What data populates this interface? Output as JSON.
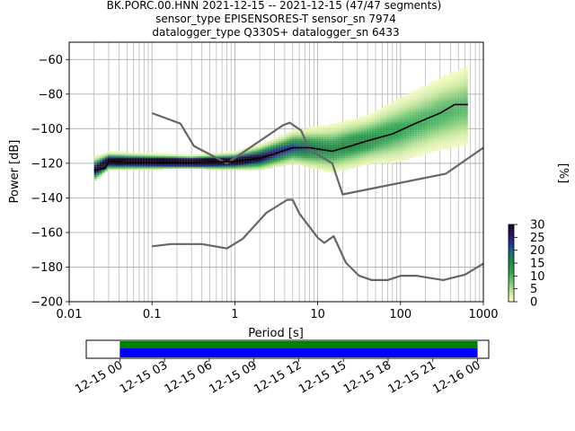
{
  "title_lines": [
    "BK.PORC.00.HNN   2021-12-15 -- 2021-12-15  (47/47 segments)",
    "sensor_type EPISENSORES-T sensor_sn 7974",
    "datalogger_type Q330S+ datalogger_sn 6433"
  ],
  "chart_data": {
    "type": "heatmap",
    "xlabel": "Period [s]",
    "ylabel": "Power [dB]",
    "xscale": "log",
    "xlim": [
      0.01,
      1000
    ],
    "ylim": [
      -200,
      -50
    ],
    "grid": true,
    "x_ticks": [
      {
        "value": 0.01,
        "label": "0.01"
      },
      {
        "value": 0.1,
        "label": "0.1"
      },
      {
        "value": 1,
        "label": "1"
      },
      {
        "value": 10,
        "label": "10"
      },
      {
        "value": 100,
        "label": "100"
      },
      {
        "value": 1000,
        "label": "1000"
      }
    ],
    "y_ticks": [
      {
        "value": -200,
        "label": "−200"
      },
      {
        "value": -180,
        "label": "−180"
      },
      {
        "value": -160,
        "label": "−160"
      },
      {
        "value": -140,
        "label": "−140"
      },
      {
        "value": -120,
        "label": "−120"
      },
      {
        "value": -100,
        "label": "−100"
      },
      {
        "value": -80,
        "label": "−80"
      },
      {
        "value": -60,
        "label": "−60"
      }
    ],
    "colorbar": {
      "label": "[%]",
      "range": [
        0,
        30
      ],
      "colormap": [
        "#ffffcc",
        "#c2e699",
        "#78c679",
        "#31a354",
        "#238b45",
        "#1d6f6f",
        "#253494",
        "#2c1158",
        "#140a28"
      ],
      "ticks": [
        {
          "value": 0,
          "label": "0"
        },
        {
          "value": 5,
          "label": "5"
        },
        {
          "value": 10,
          "label": "10"
        },
        {
          "value": 15,
          "label": "15"
        },
        {
          "value": 20,
          "label": "20"
        },
        {
          "value": 25,
          "label": "25"
        },
        {
          "value": 30,
          "label": "30"
        }
      ]
    },
    "series": [
      {
        "role": "noise-model-high",
        "color": "#666666",
        "points": [
          [
            0.1,
            -91
          ],
          [
            0.22,
            -97
          ],
          [
            0.32,
            -110
          ],
          [
            0.8,
            -120
          ],
          [
            3.8,
            -98
          ],
          [
            4.6,
            -96.5
          ],
          [
            6.3,
            -101
          ],
          [
            8,
            -112
          ],
          [
            15,
            -120
          ],
          [
            20,
            -138
          ],
          [
            354,
            -126
          ],
          [
            1000,
            -111
          ]
        ]
      },
      {
        "role": "noise-model-low",
        "color": "#666666",
        "points": [
          [
            0.1,
            -168
          ],
          [
            0.17,
            -166.7
          ],
          [
            0.4,
            -166.7
          ],
          [
            0.8,
            -169.2
          ],
          [
            1.24,
            -163.7
          ],
          [
            2.4,
            -148.6
          ],
          [
            4.3,
            -141.1
          ],
          [
            5,
            -141.1
          ],
          [
            6,
            -149
          ],
          [
            10,
            -163
          ],
          [
            12,
            -166
          ],
          [
            15.6,
            -162.1
          ],
          [
            21.9,
            -177.5
          ],
          [
            31.6,
            -185
          ],
          [
            45,
            -187.5
          ],
          [
            70,
            -187.5
          ],
          [
            101,
            -185
          ],
          [
            154,
            -185
          ],
          [
            328,
            -187.5
          ],
          [
            600,
            -184.4
          ],
          [
            1000,
            -178
          ]
        ]
      },
      {
        "role": "median-psd",
        "color": "#000000",
        "points": [
          [
            0.02,
            -124
          ],
          [
            0.027,
            -123
          ],
          [
            0.03,
            -119
          ],
          [
            0.05,
            -119.5
          ],
          [
            0.3,
            -119.5
          ],
          [
            1,
            -119
          ],
          [
            2,
            -117
          ],
          [
            3,
            -114.5
          ],
          [
            5,
            -111
          ],
          [
            8,
            -111
          ],
          [
            15,
            -113
          ],
          [
            25,
            -110
          ],
          [
            40,
            -107
          ],
          [
            80,
            -103
          ],
          [
            150,
            -97
          ],
          [
            300,
            -91
          ],
          [
            450,
            -86
          ],
          [
            650,
            -86
          ]
        ]
      }
    ],
    "density_band": [
      {
        "period": 0.02,
        "mode": -124,
        "spread": 3
      },
      {
        "period": 0.03,
        "mode": -119,
        "spread": 2
      },
      {
        "period": 0.3,
        "mode": -119.5,
        "spread": 1.5
      },
      {
        "period": 1,
        "mode": -119,
        "spread": 2
      },
      {
        "period": 2,
        "mode": -117,
        "spread": 3
      },
      {
        "period": 5,
        "mode": -111,
        "spread": 4
      },
      {
        "period": 15,
        "mode": -112,
        "spread": 6
      },
      {
        "period": 40,
        "mode": -107,
        "spread": 6
      },
      {
        "period": 100,
        "mode": -101,
        "spread": 8
      },
      {
        "period": 300,
        "mode": -92,
        "spread": 9
      },
      {
        "period": 650,
        "mode": -87,
        "spread": 10
      }
    ],
    "coverage": {
      "ticks": [
        "12-15 00",
        "12-15 03",
        "12-15 06",
        "12-15 09",
        "12-15 12",
        "12-15 15",
        "12-15 18",
        "12-15 21",
        "12-16 00"
      ],
      "range_hours": [
        -2.25,
        24.75
      ],
      "data_span_hours": [
        0,
        24
      ],
      "colors": {
        "data": "#0000ff",
        "psd": "#008000"
      }
    }
  }
}
